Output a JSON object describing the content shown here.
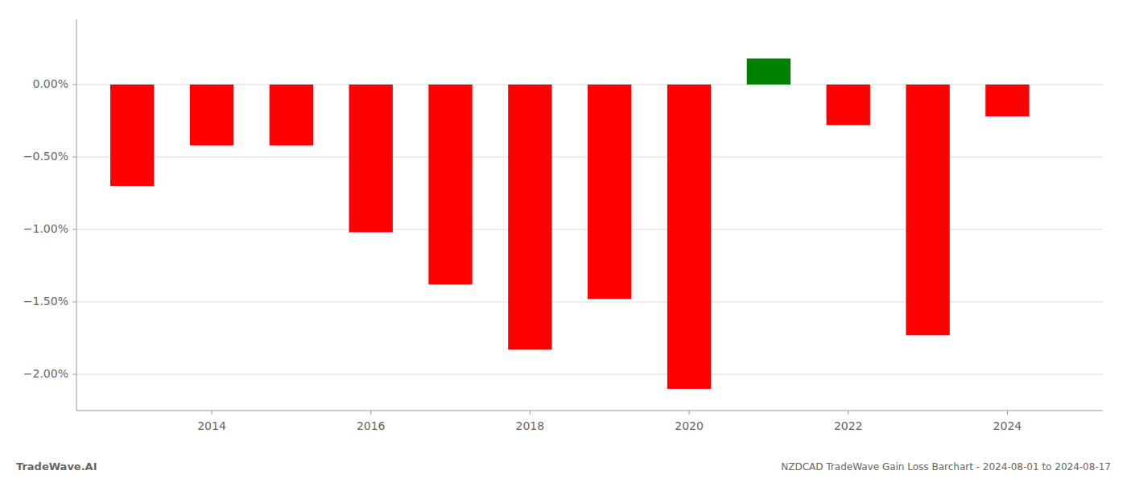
{
  "chart_data": {
    "type": "bar",
    "title": "NZDCAD TradeWave Gain Loss Barchart - 2024-08-01 to 2024-08-17",
    "annotations": [
      "TradeWave.AI"
    ],
    "x": [
      2013,
      2014,
      2015,
      2016,
      2017,
      2018,
      2019,
      2020,
      2021,
      2022,
      2023,
      2024
    ],
    "values": [
      -0.007,
      -0.0042,
      -0.0042,
      -0.0102,
      -0.0138,
      -0.0183,
      -0.0148,
      -0.021,
      0.0018,
      -0.0028,
      -0.0173,
      -0.0022
    ],
    "colors": [
      "#ff0000",
      "#ff0000",
      "#ff0000",
      "#ff0000",
      "#ff0000",
      "#ff0000",
      "#ff0000",
      "#ff0000",
      "#008000",
      "#ff0000",
      "#ff0000",
      "#ff0000"
    ],
    "xlim": [
      2012.3,
      2025.2
    ],
    "xticks": [
      2014,
      2016,
      2018,
      2020,
      2022,
      2024
    ],
    "ylim": [
      -0.0225,
      0.0045
    ],
    "yticks": [
      {
        "value": 0.0,
        "label": "0.00%"
      },
      {
        "value": -0.005,
        "label": "−0.50%"
      },
      {
        "value": -0.01,
        "label": "−1.00%"
      },
      {
        "value": -0.015,
        "label": "−1.50%"
      },
      {
        "value": -0.02,
        "label": "−2.00%"
      }
    ],
    "grid": true
  }
}
